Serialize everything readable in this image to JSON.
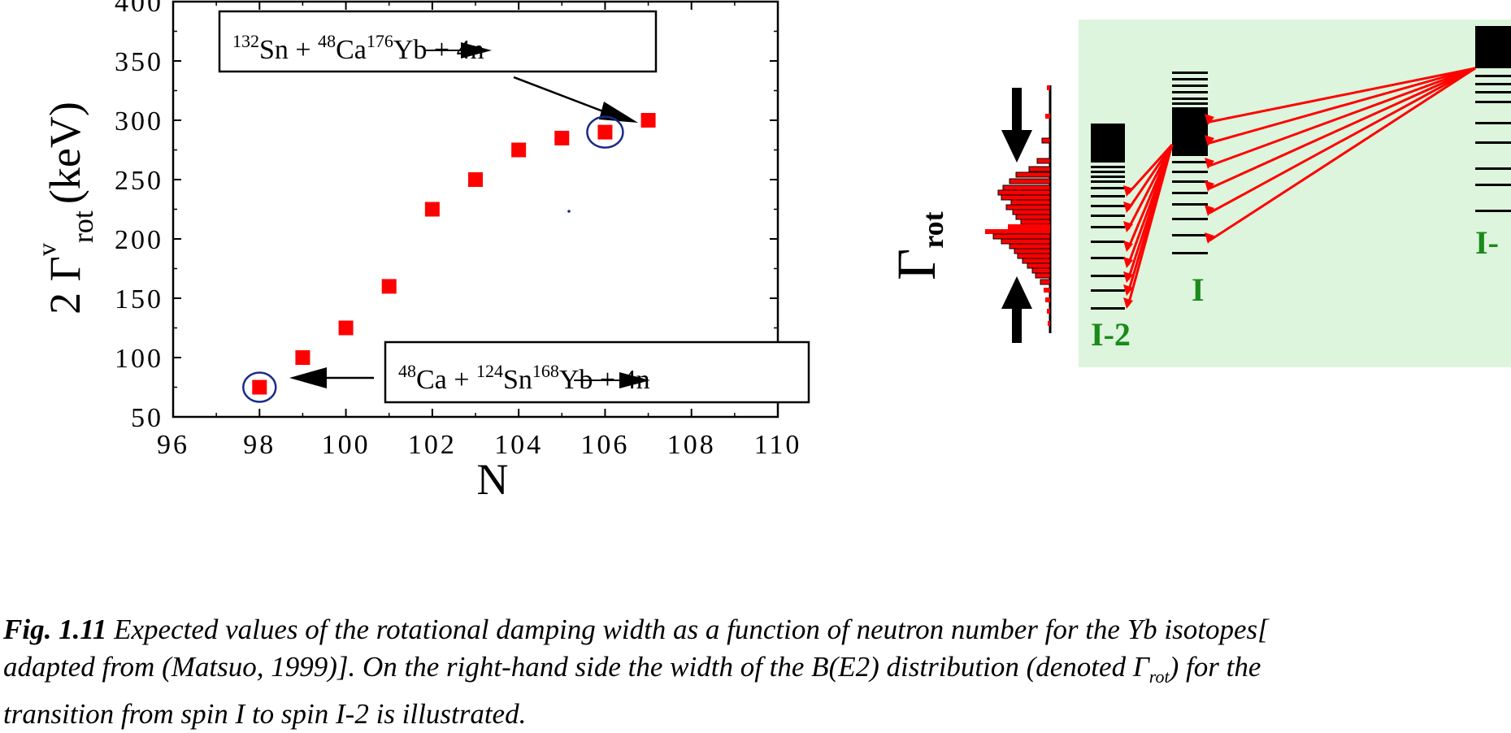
{
  "chart_data": {
    "type": "scatter",
    "x": [
      98,
      99,
      100,
      101,
      102,
      103,
      104,
      105,
      106,
      107
    ],
    "y": [
      75,
      100,
      125,
      160,
      225,
      250,
      275,
      285,
      290,
      300
    ],
    "xlim": [
      96,
      110
    ],
    "ylim": [
      50,
      400
    ],
    "xticks": [
      96,
      98,
      100,
      102,
      104,
      106,
      108,
      110
    ],
    "yticks": [
      50,
      100,
      150,
      200,
      250,
      300,
      350,
      400
    ],
    "xlabel": "N",
    "ylabel": {
      "prefix": "2 Γ",
      "sup": "v",
      "sub": "rot",
      "suffix": "(keV)"
    },
    "grid": false,
    "marker_color": "#ff0000",
    "annotations": [
      {
        "x": 106,
        "y": 290,
        "circled": true,
        "text": [
          {
            "sup": "132"
          },
          {
            "t": "Sn + "
          },
          {
            "sup": "48"
          },
          {
            "t": "Ca"
          },
          {
            "arrow": true
          },
          {
            "sup": "176"
          },
          {
            "t": "Yb + 4n"
          }
        ]
      },
      {
        "x": 98,
        "y": 75,
        "circled": true,
        "text": [
          {
            "sup": "48"
          },
          {
            "t": "Ca + "
          },
          {
            "sup": "124"
          },
          {
            "t": "Sn"
          },
          {
            "arrow": true
          },
          {
            "sup": "168"
          },
          {
            "t": "Yb + 4n"
          }
        ]
      }
    ]
  },
  "diagram": {
    "gamma_label": {
      "main": "Γ",
      "sub": "rot"
    },
    "gamma_color": "#e020d0",
    "level_labels": [
      "I-2",
      "I",
      "I-"
    ],
    "label_color": "#1a8a1a",
    "panel_bg": "#ddf5dd",
    "arrow_color": "#ff0000"
  },
  "caption": {
    "fig_label": "Fig. 1.11",
    "line1": " Expected values of the rotational damping width as a function of neutron number for the Yb isotopes[",
    "line2_a": "adapted from (Matsuo, 1999)]. On the right-hand side the width of the B(E2) distribution (denoted ",
    "line2_g": "Γ",
    "line2_sub": "rot",
    "line2_b": ") for the",
    "line3": "transition from spin I to spin I-2 is illustrated."
  }
}
